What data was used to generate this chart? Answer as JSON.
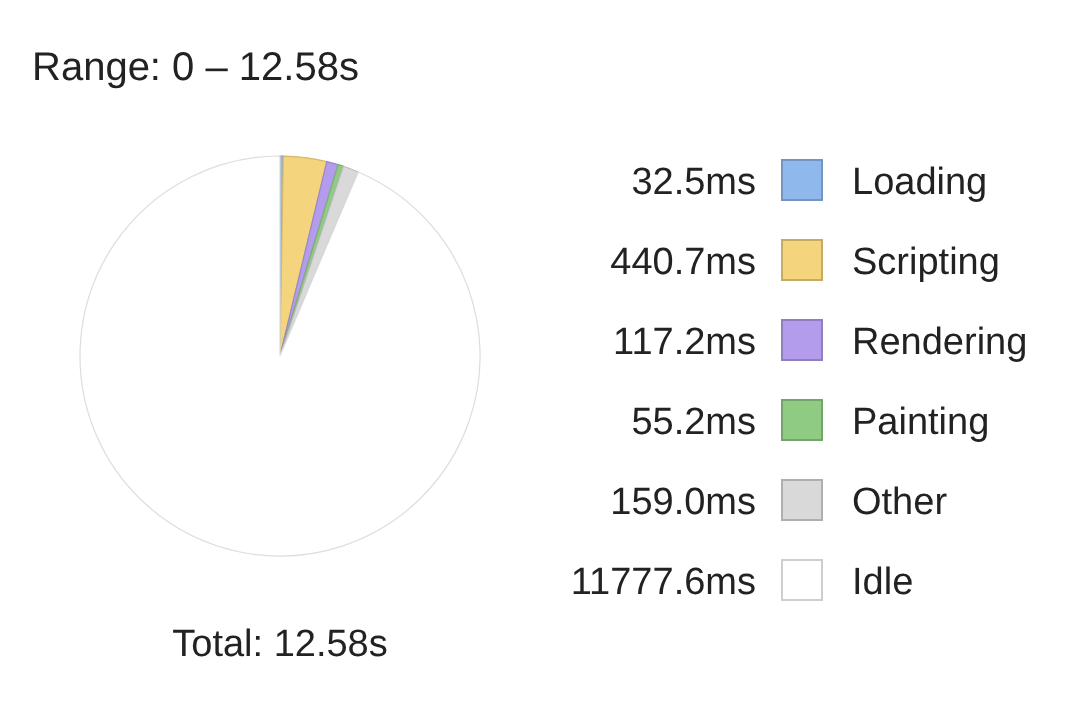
{
  "chart_data": {
    "type": "pie",
    "title": "Range: 0 – 12.58s",
    "annotations": [
      "Total: 12.58s"
    ],
    "categories": [
      "Loading",
      "Scripting",
      "Rendering",
      "Painting",
      "Other",
      "Idle"
    ],
    "values": [
      32.5,
      440.7,
      117.2,
      55.2,
      159.0,
      11777.6
    ],
    "value_labels": [
      "32.5ms",
      "440.7ms",
      "117.2ms",
      "55.2ms",
      "159.0ms",
      "11777.6ms"
    ],
    "colors": [
      "#8fb8ec",
      "#f4d47c",
      "#b49cec",
      "#8fcb83",
      "#d9d9d9",
      "#ffffff"
    ],
    "legend": "right"
  }
}
